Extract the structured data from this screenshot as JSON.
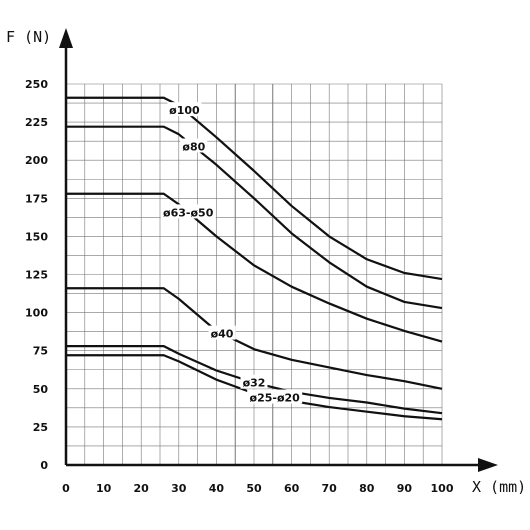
{
  "chart_data": {
    "type": "line",
    "xlabel": "X (mm)",
    "ylabel": "F (N)",
    "xlim": [
      0,
      100
    ],
    "ylim": [
      0,
      250
    ],
    "x_ticks": [
      "0",
      "10",
      "20",
      "30",
      "40",
      "50",
      "60",
      "70",
      "80",
      "90",
      "100"
    ],
    "y_ticks": [
      "0",
      "25",
      "50",
      "75",
      "100",
      "125",
      "150",
      "175",
      "200",
      "225",
      "250"
    ],
    "grid": true,
    "series": [
      {
        "name": "ø100",
        "points": [
          [
            0,
            241
          ],
          [
            26,
            241
          ],
          [
            30,
            236
          ],
          [
            40,
            215
          ],
          [
            50,
            193
          ],
          [
            60,
            170
          ],
          [
            70,
            150
          ],
          [
            80,
            135
          ],
          [
            90,
            126
          ],
          [
            100,
            122
          ]
        ]
      },
      {
        "name": "ø80",
        "points": [
          [
            0,
            222
          ],
          [
            26,
            222
          ],
          [
            30,
            217
          ],
          [
            40,
            197
          ],
          [
            50,
            175
          ],
          [
            60,
            152
          ],
          [
            70,
            133
          ],
          [
            80,
            117
          ],
          [
            90,
            107
          ],
          [
            100,
            103
          ]
        ]
      },
      {
        "name": "ø63-ø50",
        "points": [
          [
            0,
            178
          ],
          [
            26,
            178
          ],
          [
            30,
            171
          ],
          [
            40,
            150
          ],
          [
            50,
            131
          ],
          [
            60,
            117
          ],
          [
            70,
            106
          ],
          [
            80,
            96
          ],
          [
            90,
            88
          ],
          [
            100,
            81
          ]
        ]
      },
      {
        "name": "ø40",
        "points": [
          [
            0,
            116
          ],
          [
            26,
            116
          ],
          [
            30,
            109
          ],
          [
            40,
            88
          ],
          [
            50,
            76
          ],
          [
            60,
            69
          ],
          [
            70,
            64
          ],
          [
            80,
            59
          ],
          [
            90,
            55
          ],
          [
            100,
            50
          ]
        ]
      },
      {
        "name": "ø32",
        "points": [
          [
            0,
            78
          ],
          [
            26,
            78
          ],
          [
            30,
            73
          ],
          [
            40,
            62
          ],
          [
            50,
            54
          ],
          [
            60,
            48
          ],
          [
            70,
            44
          ],
          [
            80,
            41
          ],
          [
            90,
            37
          ],
          [
            100,
            34
          ]
        ]
      },
      {
        "name": "ø25-ø20",
        "points": [
          [
            0,
            72
          ],
          [
            26,
            72
          ],
          [
            30,
            68
          ],
          [
            40,
            56
          ],
          [
            50,
            47
          ],
          [
            60,
            42
          ],
          [
            70,
            38
          ],
          [
            80,
            35
          ],
          [
            90,
            32
          ],
          [
            100,
            30
          ]
        ]
      }
    ]
  }
}
